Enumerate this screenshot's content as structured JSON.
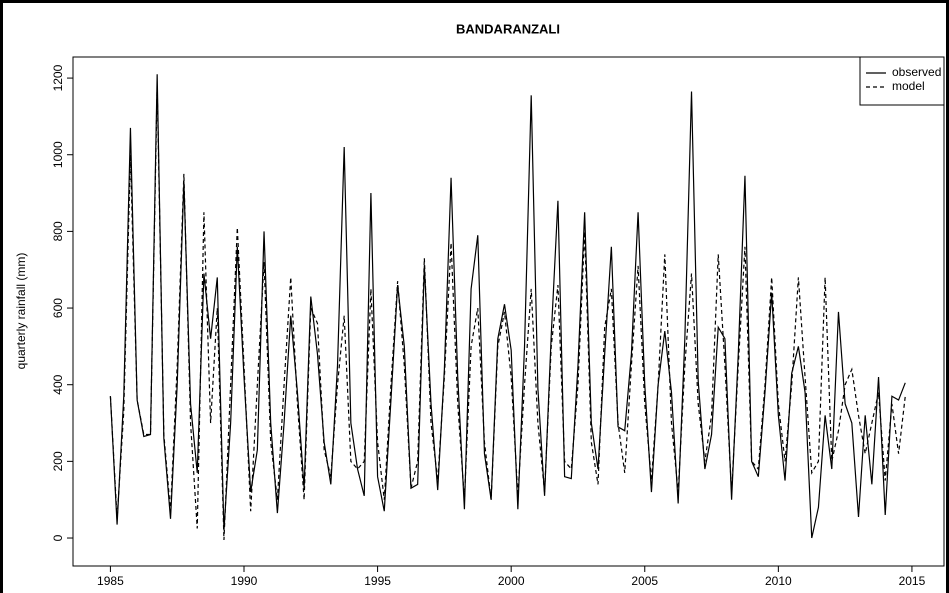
{
  "chart_data": {
    "type": "line",
    "title": "BANDARANZALI",
    "ylabel": "quarterly rainfall (mm)",
    "x": [
      1985,
      1985.25,
      1985.5,
      1985.75,
      1986,
      1986.25,
      1986.5,
      1986.75,
      1987,
      1987.25,
      1987.5,
      1987.75,
      1988,
      1988.25,
      1988.5,
      1988.75,
      1989,
      1989.25,
      1989.5,
      1989.75,
      1990,
      1990.25,
      1990.5,
      1990.75,
      1991,
      1991.25,
      1991.5,
      1991.75,
      1992,
      1992.25,
      1992.5,
      1992.75,
      1993,
      1993.25,
      1993.5,
      1993.75,
      1994,
      1994.25,
      1994.5,
      1994.75,
      1995,
      1995.25,
      1995.5,
      1995.75,
      1996,
      1996.25,
      1996.5,
      1996.75,
      1997,
      1997.25,
      1997.5,
      1997.75,
      1998,
      1998.25,
      1998.5,
      1998.75,
      1999,
      1999.25,
      1999.5,
      1999.75,
      2000,
      2000.25,
      2000.5,
      2000.75,
      2001,
      2001.25,
      2001.5,
      2001.75,
      2002,
      2002.25,
      2002.5,
      2002.75,
      2003,
      2003.25,
      2003.5,
      2003.75,
      2004,
      2004.25,
      2004.5,
      2004.75,
      2005,
      2005.25,
      2005.5,
      2005.75,
      2006,
      2006.25,
      2006.5,
      2006.75,
      2007,
      2007.25,
      2007.5,
      2007.75,
      2008,
      2008.25,
      2008.5,
      2008.75,
      2009,
      2009.25,
      2009.5,
      2009.75,
      2010,
      2010.25,
      2010.5,
      2010.75,
      2011,
      2011.25,
      2011.5,
      2011.75,
      2012,
      2012.25,
      2012.5,
      2012.75,
      2013,
      2013.25,
      2013.5,
      2013.75,
      2014,
      2014.25,
      2014.5,
      2014.75
    ],
    "series": [
      {
        "name": "observed",
        "color": "#000000",
        "linestyle": "solid",
        "values": [
          370,
          35,
          370,
          1070,
          360,
          265,
          270,
          1210,
          260,
          50,
          400,
          930,
          350,
          170,
          690,
          520,
          680,
          20,
          300,
          760,
          420,
          120,
          230,
          800,
          300,
          65,
          300,
          580,
          380,
          130,
          630,
          480,
          250,
          140,
          450,
          1020,
          300,
          180,
          110,
          900,
          160,
          70,
          360,
          660,
          500,
          130,
          140,
          710,
          350,
          125,
          440,
          940,
          420,
          75,
          650,
          790,
          220,
          100,
          520,
          610,
          490,
          75,
          500,
          1155,
          390,
          110,
          530,
          880,
          160,
          155,
          450,
          850,
          300,
          180,
          480,
          760,
          290,
          280,
          480,
          850,
          400,
          120,
          400,
          540,
          380,
          90,
          520,
          1165,
          410,
          180,
          270,
          550,
          520,
          100,
          480,
          945,
          200,
          160,
          380,
          640,
          320,
          150,
          430,
          500,
          380,
          0,
          80,
          320,
          180,
          590,
          350,
          300,
          55,
          320,
          140,
          420,
          60,
          370,
          360,
          405
        ]
      },
      {
        "name": "model",
        "color": "#000000",
        "linestyle": "dashed",
        "values": [
          370,
          50,
          330,
          1000,
          360,
          270,
          270,
          1180,
          270,
          70,
          450,
          950,
          300,
          25,
          850,
          300,
          600,
          -5,
          400,
          810,
          450,
          70,
          400,
          720,
          250,
          100,
          400,
          680,
          350,
          100,
          600,
          560,
          230,
          160,
          400,
          580,
          200,
          180,
          200,
          650,
          250,
          100,
          400,
          670,
          450,
          130,
          200,
          730,
          300,
          150,
          420,
          770,
          350,
          100,
          500,
          600,
          250,
          100,
          500,
          590,
          420,
          110,
          400,
          650,
          300,
          120,
          500,
          660,
          200,
          180,
          400,
          800,
          250,
          140,
          550,
          650,
          300,
          170,
          450,
          710,
          350,
          150,
          400,
          740,
          300,
          120,
          450,
          690,
          350,
          200,
          320,
          740,
          450,
          120,
          450,
          760,
          200,
          180,
          400,
          680,
          350,
          200,
          400,
          680,
          420,
          170,
          200,
          680,
          200,
          280,
          400,
          440,
          320,
          220,
          300,
          380,
          150,
          350,
          220,
          370
        ]
      }
    ],
    "xlim": [
      1983.6,
      2016.2
    ],
    "xticks": [
      1985,
      1990,
      1995,
      2000,
      2005,
      2010,
      2015
    ],
    "ylim": [
      -73,
      1255
    ],
    "yticks": [
      0,
      200,
      400,
      600,
      800,
      1000,
      1200
    ],
    "legend": "top-right"
  }
}
